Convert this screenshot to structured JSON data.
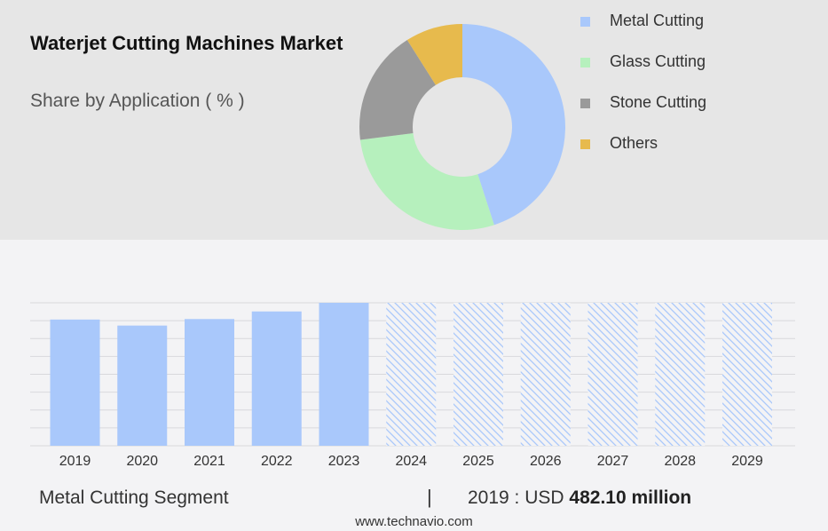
{
  "header": {
    "title": "Waterjet Cutting Machines Market",
    "subtitle": "Share by Application ( % )"
  },
  "legend": [
    {
      "label": "Metal Cutting",
      "color": "#a9c8fb"
    },
    {
      "label": "Glass Cutting",
      "color": "#b6f0bd"
    },
    {
      "label": "Stone Cutting",
      "color": "#9a9a9a"
    },
    {
      "label": "Others",
      "color": "#e7ba4d"
    }
  ],
  "footer": {
    "segment": "Metal Cutting Segment",
    "divider": "|",
    "value_prefix": "2019 : USD ",
    "value_amount": "482.10 million"
  },
  "source": "www.technavio.com",
  "chart_data": [
    {
      "type": "pie",
      "variant": "donut",
      "labels": [
        "Metal Cutting",
        "Glass Cutting",
        "Stone Cutting",
        "Others"
      ],
      "values": [
        45,
        28,
        18,
        9
      ],
      "colors": [
        "#a9c8fb",
        "#b6f0bd",
        "#9a9a9a",
        "#e7ba4d"
      ]
    },
    {
      "type": "bar",
      "categories": [
        "2019",
        "2020",
        "2021",
        "2022",
        "2023",
        "2024",
        "2025",
        "2026",
        "2027",
        "2028",
        "2029"
      ],
      "values": [
        482.1,
        459,
        484,
        513,
        546,
        null,
        null,
        null,
        null,
        null,
        null
      ],
      "forecast": [
        false,
        false,
        false,
        false,
        false,
        true,
        true,
        true,
        true,
        true,
        true
      ],
      "bar_color": "#a9c8fb",
      "ylim": [
        0,
        546
      ],
      "grid": true,
      "y_tick_labels_shown": false
    }
  ]
}
